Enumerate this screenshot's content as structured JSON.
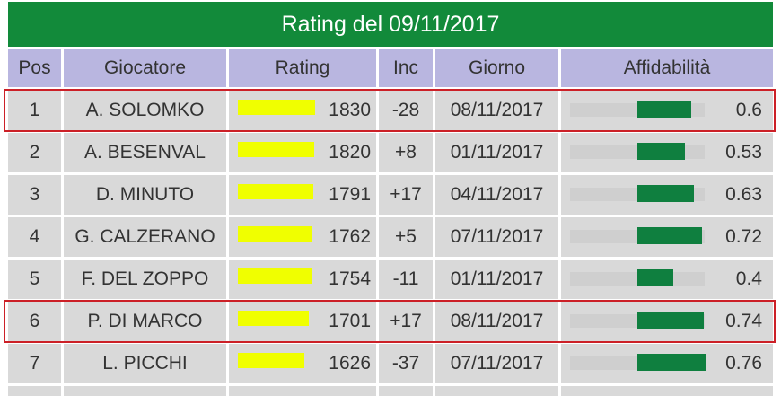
{
  "title": "Rating del 09/11/2017",
  "headers": {
    "pos": "Pos",
    "player": "Giocatore",
    "rating": "Rating",
    "inc": "Inc",
    "day": "Giorno",
    "reliability": "Affidabilità"
  },
  "rows": [
    {
      "pos": "1",
      "player": "A. SOLOMKO",
      "rating": "1830",
      "inc": "-28",
      "day": "08/11/2017",
      "reliability": "0.6",
      "highlighted": true
    },
    {
      "pos": "2",
      "player": "A. BESENVAL",
      "rating": "1820",
      "inc": "+8",
      "day": "01/11/2017",
      "reliability": "0.53",
      "highlighted": false
    },
    {
      "pos": "3",
      "player": "D. MINUTO",
      "rating": "1791",
      "inc": "+17",
      "day": "04/11/2017",
      "reliability": "0.63",
      "highlighted": false
    },
    {
      "pos": "4",
      "player": "G. CALZERANO",
      "rating": "1762",
      "inc": "+5",
      "day": "07/11/2017",
      "reliability": "0.72",
      "highlighted": false
    },
    {
      "pos": "5",
      "player": "F. DEL ZOPPO",
      "rating": "1754",
      "inc": "-11",
      "day": "01/11/2017",
      "reliability": "0.4",
      "highlighted": false
    },
    {
      "pos": "6",
      "player": "P. DI MARCO",
      "rating": "1701",
      "inc": "+17",
      "day": "08/11/2017",
      "reliability": "0.74",
      "highlighted": true
    },
    {
      "pos": "7",
      "player": "L. PICCHI",
      "rating": "1626",
      "inc": "-37",
      "day": "07/11/2017",
      "reliability": "0.76",
      "highlighted": false
    }
  ],
  "colors": {
    "title_bg": "#128a3a",
    "header_bg": "#b9b6e0",
    "row_bg": "#d9d9d9",
    "rating_bar": "#f0ff00",
    "reliability_bar": "#0f7f3f",
    "reliability_track": "#cfcfcf",
    "highlight_border": "#cc2027"
  }
}
